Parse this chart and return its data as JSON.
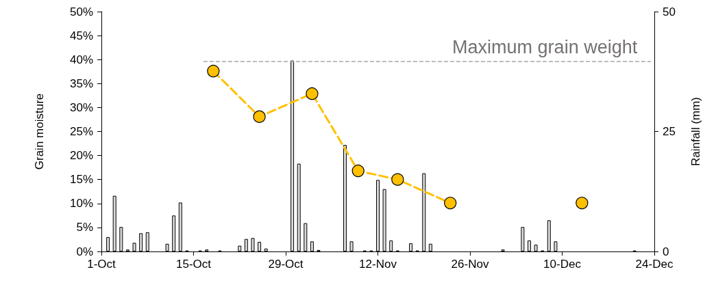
{
  "chart_data": {
    "type": "bar",
    "ylabel": "Grain moisture",
    "y2label": "Rainfall (mm)",
    "xlim": [
      "--10-01",
      "--12-24"
    ],
    "xticks": [
      {
        "value": "--10-01",
        "label": "1-Oct"
      },
      {
        "value": "--10-15",
        "label": "15-Oct"
      },
      {
        "value": "--10-29",
        "label": "29-Oct"
      },
      {
        "value": "--11-12",
        "label": "12-Nov"
      },
      {
        "value": "--11-26",
        "label": "26-Nov"
      },
      {
        "value": "--12-10",
        "label": "10-Dec"
      },
      {
        "value": "--12-24",
        "label": "24-Dec"
      }
    ],
    "ylim": [
      0,
      50
    ],
    "yticks": [
      {
        "value": 0,
        "label": "0%"
      },
      {
        "value": 5,
        "label": "5%"
      },
      {
        "value": 10,
        "label": "10%"
      },
      {
        "value": 15,
        "label": "15%"
      },
      {
        "value": 20,
        "label": "20%"
      },
      {
        "value": 25,
        "label": "25%"
      },
      {
        "value": 30,
        "label": "30%"
      },
      {
        "value": 35,
        "label": "35%"
      },
      {
        "value": 40,
        "label": "40%"
      },
      {
        "value": 45,
        "label": "45%"
      },
      {
        "value": 50,
        "label": "50%"
      }
    ],
    "y2lim": [
      0,
      50
    ],
    "y2ticks": [
      0,
      25,
      50
    ],
    "grid": false,
    "series": [
      {
        "axis": "y2",
        "color": "#d9d9d9",
        "x": [
          "--10-02",
          "--10-03",
          "--10-04",
          "--10-05",
          "--10-06",
          "--10-07",
          "--10-08",
          "--10-11",
          "--10-12",
          "--10-13",
          "--10-14",
          "--10-16",
          "--10-17",
          "--10-19",
          "--10-22",
          "--10-23",
          "--10-24",
          "--10-25",
          "--10-26",
          "--10-30",
          "--10-31",
          "--11-01",
          "--11-02",
          "--11-03",
          "--11-07",
          "--11-08",
          "--11-10",
          "--11-11",
          "--11-12",
          "--11-13",
          "--11-14",
          "--11-15",
          "--11-17",
          "--11-18",
          "--11-19",
          "--11-20",
          "--12-01",
          "--12-04",
          "--12-05",
          "--12-06",
          "--12-07",
          "--12-08",
          "--12-09",
          "--12-21"
        ],
        "values": [
          3.0,
          11.6,
          5.1,
          0.4,
          1.8,
          3.8,
          4.0,
          1.6,
          7.5,
          10.2,
          0.2,
          0.2,
          0.4,
          0.2,
          1.2,
          2.6,
          2.8,
          2.0,
          0.6,
          39.8,
          18.3,
          5.9,
          2.1,
          0.3,
          22.2,
          2.1,
          0.2,
          0.2,
          14.9,
          13.0,
          2.3,
          0.2,
          1.7,
          0.2,
          16.3,
          1.6,
          0.4,
          5.1,
          2.3,
          1.4,
          0.2,
          6.5,
          2.1,
          0.2
        ]
      },
      {
        "type": "line",
        "axis": "y",
        "color": "#ffc000",
        "marker": "circle",
        "line_style": "dashed",
        "x": [
          "--10-18",
          "--10-25",
          "--11-02",
          "--11-09",
          "--11-15",
          "--11-23"
        ],
        "values": [
          37.6,
          28.1,
          32.9,
          16.8,
          15.0,
          10.1
        ]
      },
      {
        "type": "scatter",
        "axis": "y",
        "color": "#ffc000",
        "marker": "circle",
        "x": [
          "--12-13"
        ],
        "values": [
          10.1
        ]
      }
    ],
    "ref_lines": [
      {
        "axis": "y",
        "value": 39.6,
        "label": "Maximum grain weight",
        "color": "#a6a6a6",
        "line_style": "dashed"
      }
    ]
  }
}
